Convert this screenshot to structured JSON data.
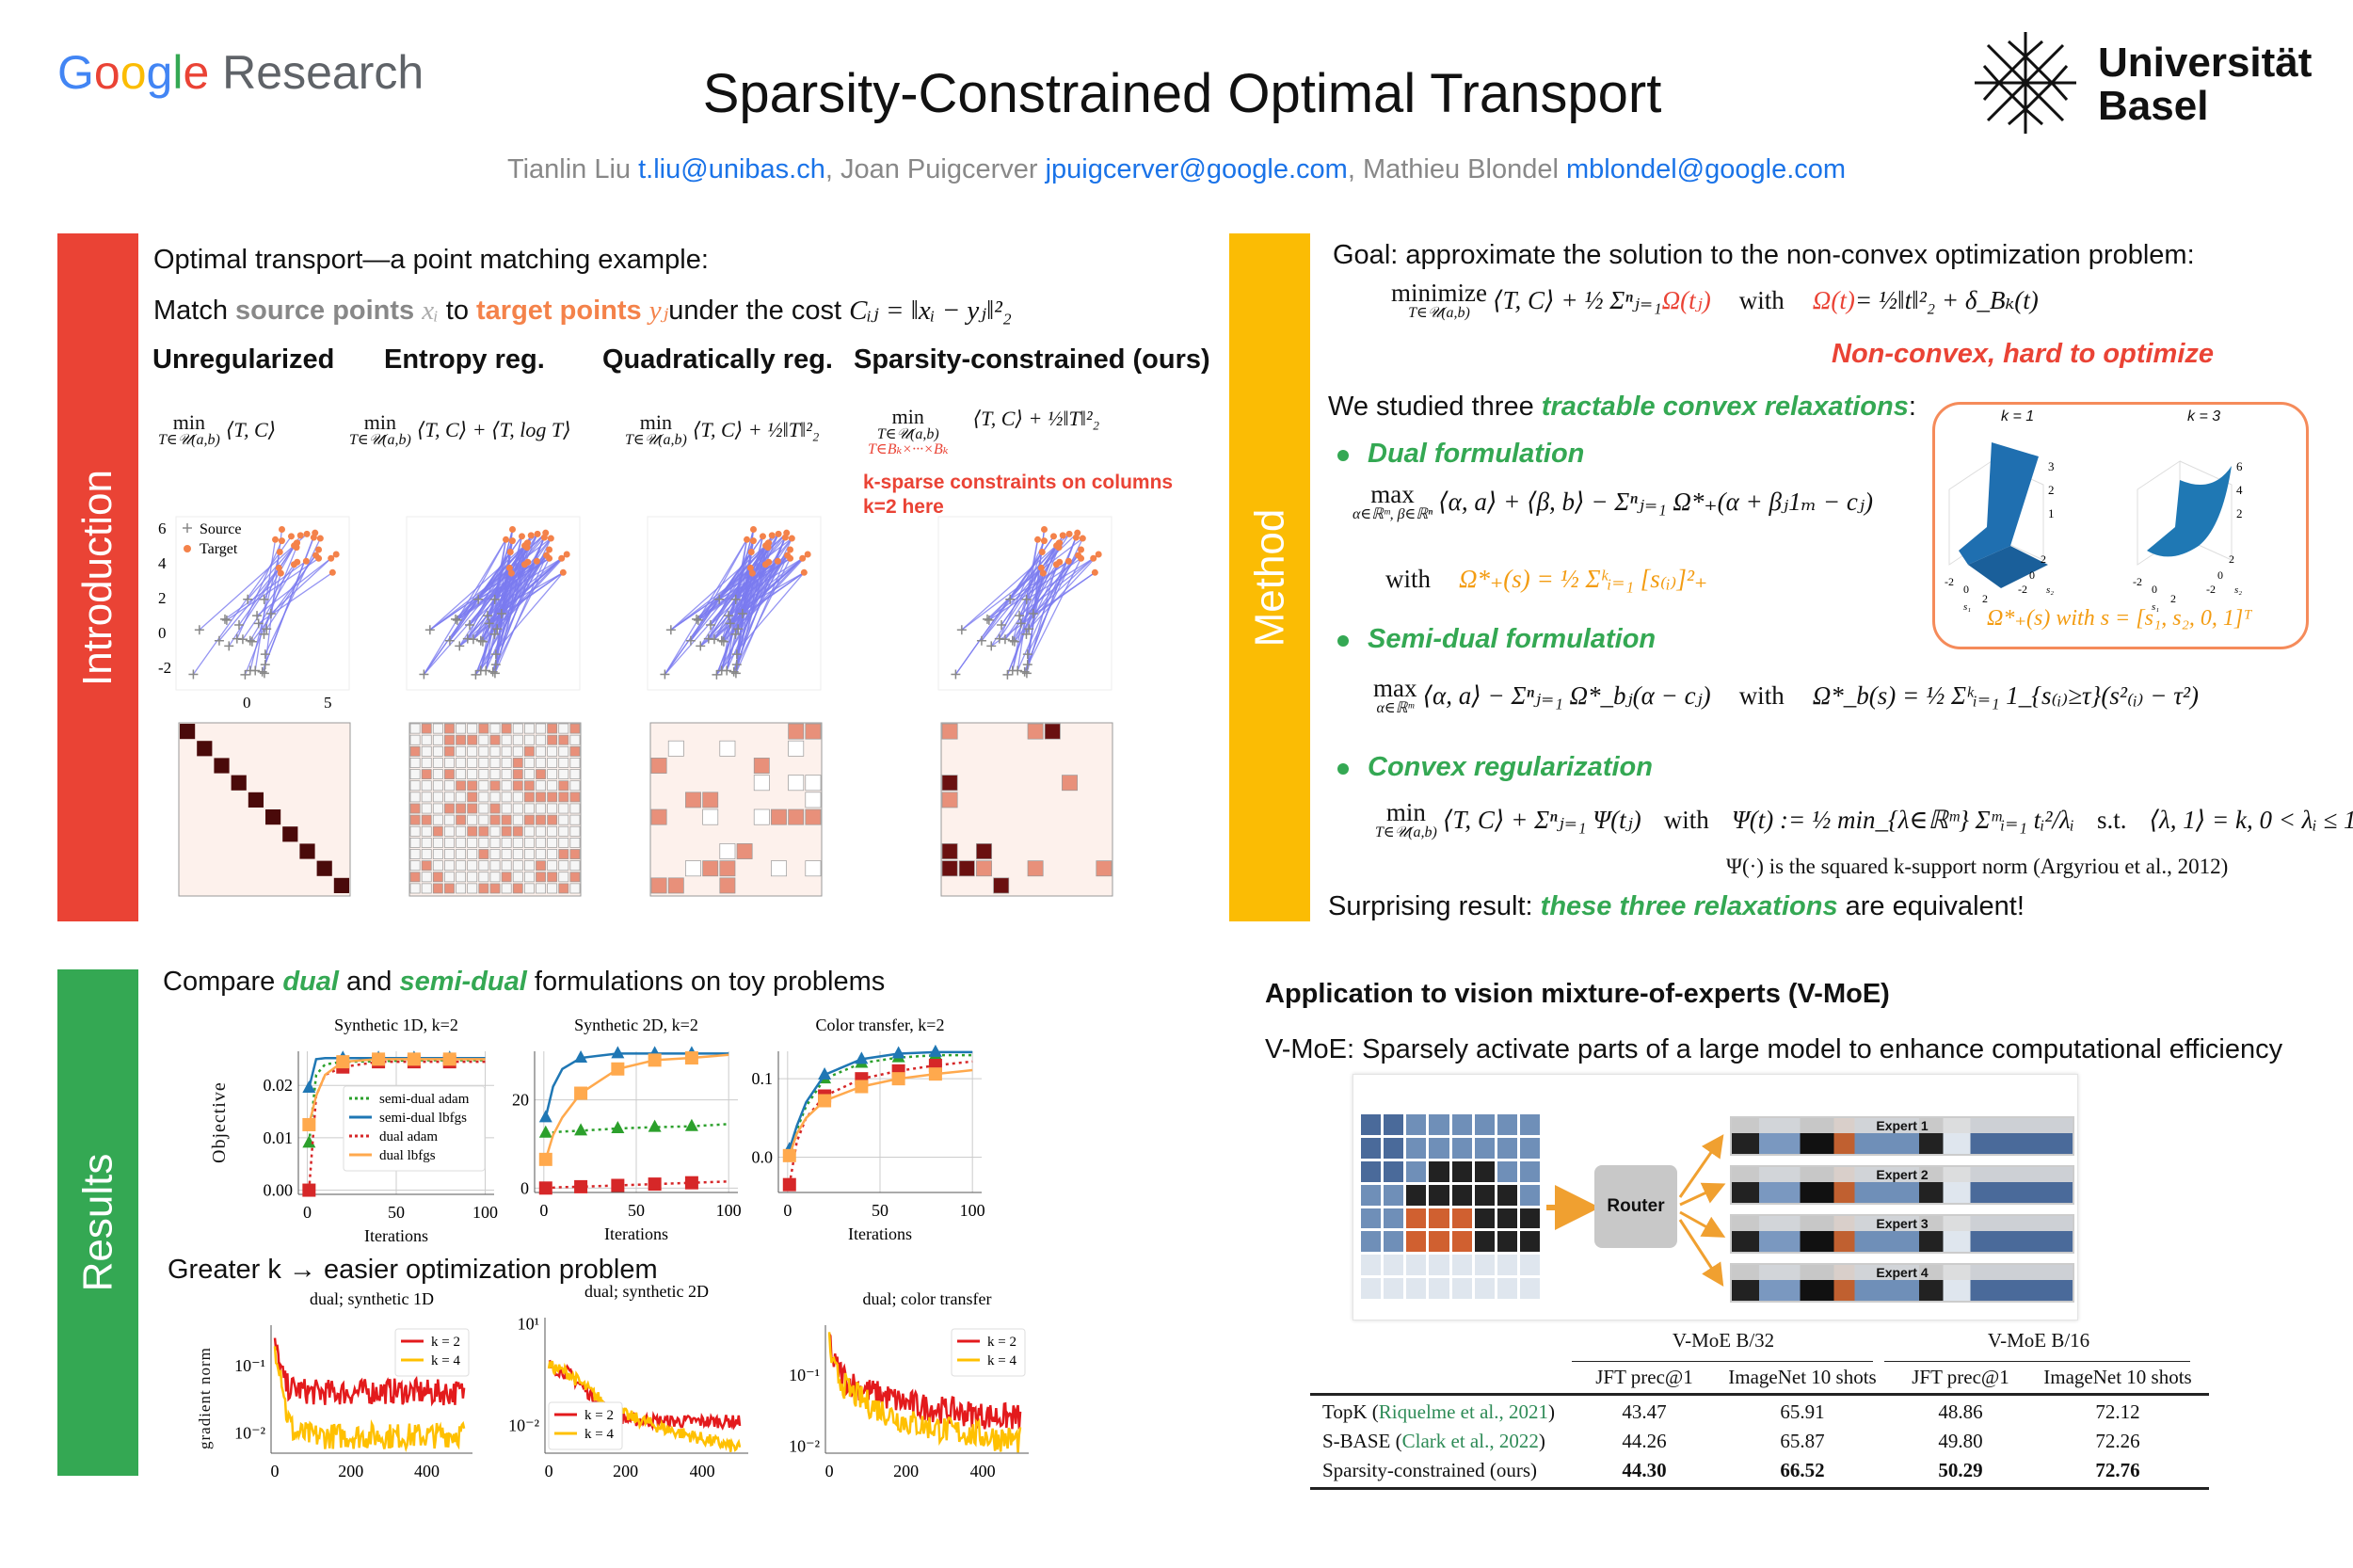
{
  "header": {
    "logo_google": [
      "G",
      "o",
      "o",
      "g",
      "l",
      "e"
    ],
    "logo_research": "Research",
    "title": "Sparsity-Constrained Optimal Transport",
    "authors": [
      {
        "name": "Tianlin Liu",
        "email": "t.liu@unibas.ch"
      },
      {
        "name": "Joan Puigcerver",
        "email": "jpuigcerver@google.com"
      },
      {
        "name": "Mathieu Blondel",
        "email": "mblondel@google.com"
      }
    ],
    "uni_line1": "Universität",
    "uni_line2": "Basel"
  },
  "colors": {
    "intro": "#ea4335",
    "method": "#fbbc04",
    "results": "#34a853",
    "source": "#888888",
    "target": "#f4824a",
    "link": "#1a73e8"
  },
  "intro": {
    "label": "Introduction",
    "line1": "Optimal transport—a point matching example:",
    "match": {
      "a": "Match ",
      "source": "source points ",
      "xi": "xᵢ",
      "b": " to ",
      "target": "target points ",
      "yj": "yⱼ",
      "c": "under the cost ",
      "cost": "Cᵢⱼ = ‖xᵢ − yⱼ‖²₂"
    },
    "columns": [
      {
        "heading": "Unregularized",
        "op": "min",
        "sub": "T∈𝒰(a,b)",
        "body": "⟨T, C⟩"
      },
      {
        "heading": "Entropy reg.",
        "op": "min",
        "sub": "T∈𝒰(a,b)",
        "body": "⟨T, C⟩ + ⟨T, log T⟩"
      },
      {
        "heading": "Quadratically reg.",
        "op": "min",
        "sub": "T∈𝒰(a,b)",
        "body": "⟨T, C⟩ + ½‖T‖²₂"
      },
      {
        "heading": "Sparsity-constrained (ours)",
        "op": "min",
        "sub": "T∈𝒰(a,b)",
        "sub2": "T∈Bₖ×···×Bₖ",
        "body": "⟨T, C⟩ + ½‖T‖²₂"
      }
    ],
    "note1": "k-sparse constraints on columns",
    "note2": "k=2 here",
    "legend": {
      "source": "Source",
      "target": "Target"
    },
    "yticks": [
      "6",
      "4",
      "2",
      "0",
      "-2"
    ],
    "xticks": [
      "0",
      "5"
    ]
  },
  "method": {
    "label": "Method",
    "goal": "Goal: approximate the solution to the non-convex optimization problem:",
    "f1": {
      "op": "minimize",
      "sub": "T∈𝒰(a,b)",
      "body": "⟨T, C⟩ + ½ Σⁿⱼ₌₁ ",
      "omega": "Ω(tⱼ)",
      "with": "with",
      "def_a": "Ω(t)",
      "def_b": " = ½‖t‖²₂ + δ_Bₖ(t)"
    },
    "nonconvex": "Non-convex, hard to optimize",
    "studied": {
      "a": "We studied three ",
      "b": "tractable convex relaxations",
      "c": ":"
    },
    "dual": {
      "title": "Dual formulation",
      "op": "max",
      "sub": "α∈ℝᵐ, β∈ℝⁿ",
      "body": "⟨α, a⟩ + ⟨β, b⟩ − Σⁿⱼ₌₁ Ω*₊(α + βⱼ1ₘ − cⱼ)",
      "with": "with",
      "def": "Ω*₊(s) = ½ Σᵏᵢ₌₁ [s₍ᵢ₎]²₊"
    },
    "semidual": {
      "title": "Semi-dual formulation",
      "op": "max",
      "sub": "α∈ℝᵐ",
      "body": "⟨α, a⟩ − Σⁿⱼ₌₁ Ω*_bⱼ(α − cⱼ)",
      "with": "with",
      "def": "Ω*_b(s) = ½ Σᵏᵢ₌₁ 1_{s₍ᵢ₎≥τ}(s²₍ᵢ₎ − τ²)"
    },
    "convex": {
      "title": "Convex regularization",
      "op": "min",
      "sub": "T∈𝒰(a,b)",
      "body": "⟨T, C⟩ + Σⁿⱼ₌₁ Ψ(tⱼ)",
      "with": "with",
      "def": "Ψ(t) := ½ min_{λ∈ℝᵐ} Σᵐᵢ₌₁ tᵢ²/λᵢ",
      "st": "s.t.",
      "constraint": "⟨λ, 1⟩ = k, 0 < λᵢ ≤ 1",
      "note": "Ψ(·) is the squared k-support norm (Argyriou et al., 2012)"
    },
    "surprising": {
      "a": "Surprising result: ",
      "b": "these three relaxations",
      "c": " are equivalent!"
    },
    "inset": {
      "k1": "k = 1",
      "k3": "k = 3",
      "zticks1": [
        "3",
        "2",
        "1"
      ],
      "zticks3": [
        "6",
        "4",
        "2"
      ],
      "axis_ticks": [
        "-2",
        "0",
        "2"
      ],
      "s1": "s₁",
      "s2": "s₂",
      "caption": "Ω*₊(s) with s = [s₁, s₂, 0, 1]ᵀ"
    }
  },
  "results": {
    "label": "Results",
    "compare": {
      "a": "Compare ",
      "b": "dual",
      "c": " and ",
      "d": "semi-dual",
      "e": " formulations on toy problems"
    },
    "greater": "Greater k → easier optimization problem",
    "ylabel_top": "Objective",
    "ylabel_bottom": "gradient norm",
    "xlabel": "Iterations"
  },
  "vmoe": {
    "heading": "Application to vision mixture-of-experts (V-MoE)",
    "subtitle": "V-MoE: Sparsely activate parts of a large model to enhance computational efficiency",
    "router": "Router",
    "experts": [
      "Expert 1",
      "Expert 2",
      "Expert 3",
      "Expert 4"
    ]
  },
  "table": {
    "groups": [
      "V-MoE B/32",
      "V-MoE B/16"
    ],
    "columns": [
      "JFT prec@1",
      "ImageNet 10 shots",
      "JFT prec@1",
      "ImageNet 10 shots"
    ],
    "rows": [
      {
        "method": "TopK",
        "cite": "Riquelme et al., 2021",
        "values": [
          "43.47",
          "65.91",
          "48.86",
          "72.12"
        ],
        "bold": false
      },
      {
        "method": "S-BASE",
        "cite": "Clark et al., 2022",
        "values": [
          "44.26",
          "65.87",
          "49.80",
          "72.26"
        ],
        "bold": false
      },
      {
        "method": "Sparsity-constrained (ours)",
        "cite": "",
        "values": [
          "44.30",
          "66.52",
          "50.29",
          "72.76"
        ],
        "bold": true
      }
    ]
  },
  "chart_data": [
    {
      "type": "line",
      "title": "Synthetic 1D, k=2",
      "xlabel": "Iterations",
      "ylabel": "Objective",
      "xlim": [
        -5,
        105
      ],
      "ylim": [
        -0.0008,
        0.0265
      ],
      "xticks": [
        0,
        50,
        100
      ],
      "xtick_labels": [
        "0",
        "50",
        "100"
      ],
      "yticks": [
        0,
        0.01,
        0.02
      ],
      "ytick_labels": [
        "0.00",
        "0.01",
        "0.02"
      ],
      "grid": true,
      "legend": "center-right",
      "x": [
        1,
        5,
        10,
        20,
        40,
        60,
        80,
        100
      ],
      "series": [
        {
          "name": "semi-dual adam",
          "color": "#2ca02c",
          "style": "dotted",
          "marker": "triangle",
          "values": [
            0.009,
            0.022,
            0.024,
            0.0245,
            0.0246,
            0.0248,
            0.0248,
            0.0248
          ]
        },
        {
          "name": "semi-dual lbfgs",
          "color": "#1f77b4",
          "style": "solid",
          "marker": "triangle",
          "values": [
            0.0195,
            0.025,
            0.0252,
            0.0252,
            0.0252,
            0.0252,
            0.0252,
            0.0252
          ]
        },
        {
          "name": "dual adam",
          "color": "#d62728",
          "style": "dotted",
          "marker": "square",
          "values": [
            0.0,
            0.018,
            0.022,
            0.0235,
            0.0245,
            0.0245,
            0.0245,
            0.0245
          ]
        },
        {
          "name": "dual lbfgs",
          "color": "#ffa94d",
          "style": "solid",
          "marker": "square",
          "values": [
            0.0125,
            0.018,
            0.022,
            0.0245,
            0.025,
            0.025,
            0.025,
            0.025
          ]
        }
      ]
    },
    {
      "type": "line",
      "title": "Synthetic 2D, k=2",
      "xlabel": "Iterations",
      "xlim": [
        -5,
        105
      ],
      "ylim": [
        -1,
        31
      ],
      "xticks": [
        0,
        50,
        100
      ],
      "xtick_labels": [
        "0",
        "50",
        "100"
      ],
      "yticks": [
        0,
        20
      ],
      "ytick_labels": [
        "0",
        "20"
      ],
      "grid": true,
      "x": [
        1,
        5,
        10,
        20,
        40,
        60,
        80,
        100
      ],
      "series": [
        {
          "color": "#2ca02c",
          "style": "dotted",
          "marker": "triangle",
          "values": [
            12.5,
            12.6,
            12.8,
            13,
            13.5,
            13.8,
            14,
            14.5
          ]
        },
        {
          "color": "#1f77b4",
          "style": "solid",
          "marker": "triangle",
          "values": [
            16,
            23,
            27,
            29.5,
            30.5,
            30.5,
            30.5,
            30.5
          ]
        },
        {
          "color": "#d62728",
          "style": "dotted",
          "marker": "square",
          "values": [
            0,
            0.1,
            0.2,
            0.3,
            0.6,
            0.9,
            1.2,
            1.5
          ]
        },
        {
          "color": "#ffa94d",
          "style": "solid",
          "marker": "square",
          "values": [
            6.5,
            12,
            16,
            21.5,
            27,
            29,
            29.5,
            30.2
          ]
        }
      ]
    },
    {
      "type": "line",
      "title": "Color transfer, k=2",
      "xlabel": "Iterations",
      "xlim": [
        -5,
        105
      ],
      "ylim": [
        -0.045,
        0.135
      ],
      "xticks": [
        0,
        50,
        100
      ],
      "xtick_labels": [
        "0",
        "50",
        "100"
      ],
      "yticks": [
        0,
        0.1
      ],
      "ytick_labels": [
        "0.0",
        "0.1"
      ],
      "grid": true,
      "x": [
        1,
        5,
        10,
        20,
        40,
        60,
        80,
        100
      ],
      "series": [
        {
          "color": "#2ca02c",
          "style": "dotted",
          "marker": "triangle",
          "values": [
            0.005,
            0.035,
            0.065,
            0.1,
            0.12,
            0.127,
            0.13,
            0.13
          ]
        },
        {
          "color": "#1f77b4",
          "style": "solid",
          "marker": "triangle",
          "values": [
            0.01,
            0.04,
            0.07,
            0.105,
            0.125,
            0.132,
            0.134,
            0.134
          ]
        },
        {
          "color": "#d62728",
          "style": "dotted",
          "marker": "square",
          "values": [
            -0.035,
            0.02,
            0.05,
            0.078,
            0.1,
            0.11,
            0.117,
            0.122
          ]
        },
        {
          "color": "#ffa94d",
          "style": "solid",
          "marker": "square",
          "values": [
            0.002,
            0.03,
            0.05,
            0.072,
            0.09,
            0.1,
            0.106,
            0.111
          ]
        }
      ]
    },
    {
      "type": "line",
      "title": "dual; synthetic 1D",
      "ylabel": "gradient norm",
      "yscale": "log",
      "xlim": [
        -10,
        520
      ],
      "ylim": [
        0.005,
        0.4
      ],
      "xticks": [
        0,
        200,
        400
      ],
      "xtick_labels": [
        "0",
        "200",
        "400"
      ],
      "yticks": [
        0.1,
        0.01
      ],
      "ytick_labels": [
        "10⁻¹",
        "10⁻²"
      ],
      "grid": false,
      "legend": "top-right",
      "x": [
        0,
        10,
        20,
        30,
        50,
        100,
        200,
        300,
        400,
        500
      ],
      "series": [
        {
          "name": "k = 2",
          "color": "#e31a1c",
          "values": [
            0.2,
            0.12,
            0.07,
            0.05,
            0.045,
            0.04,
            0.04,
            0.042,
            0.04,
            0.04
          ]
        },
        {
          "name": "k = 4",
          "color": "#ffc000",
          "values": [
            0.2,
            0.12,
            0.06,
            0.02,
            0.01,
            0.009,
            0.009,
            0.009,
            0.009,
            0.01
          ]
        }
      ]
    },
    {
      "type": "line",
      "title": "dual; synthetic 2D",
      "yscale": "log",
      "xlim": [
        -10,
        520
      ],
      "ylim": [
        0.0015,
        15
      ],
      "xticks": [
        0,
        200,
        400
      ],
      "xtick_labels": [
        "0",
        "200",
        "400"
      ],
      "yticks": [
        10,
        0.01
      ],
      "ytick_labels": [
        "10¹",
        "10⁻²"
      ],
      "grid": false,
      "legend": "bottom-left",
      "x": [
        0,
        10,
        50,
        100,
        150,
        200,
        300,
        400,
        500
      ],
      "series": [
        {
          "name": "k = 2",
          "color": "#e31a1c",
          "values": [
            0.6,
            0.5,
            0.35,
            0.1,
            0.03,
            0.015,
            0.013,
            0.013,
            0.013
          ]
        },
        {
          "name": "k = 4",
          "color": "#ffc000",
          "values": [
            0.6,
            0.5,
            0.35,
            0.12,
            0.04,
            0.02,
            0.008,
            0.004,
            0.002
          ]
        }
      ]
    },
    {
      "type": "line",
      "title": "dual; color transfer",
      "yscale": "log",
      "xlim": [
        -10,
        520
      ],
      "ylim": [
        0.008,
        0.5
      ],
      "xticks": [
        0,
        200,
        400
      ],
      "xtick_labels": [
        "0",
        "200",
        "400"
      ],
      "yticks": [
        0.1,
        0.01
      ],
      "ytick_labels": [
        "10⁻¹",
        "10⁻²"
      ],
      "grid": false,
      "legend": "top-right",
      "x": [
        0,
        10,
        50,
        100,
        200,
        300,
        400,
        500
      ],
      "series": [
        {
          "name": "k = 2",
          "color": "#e31a1c",
          "values": [
            0.35,
            0.15,
            0.08,
            0.06,
            0.04,
            0.032,
            0.027,
            0.025
          ]
        },
        {
          "name": "k = 4",
          "color": "#ffc000",
          "values": [
            0.3,
            0.12,
            0.06,
            0.04,
            0.022,
            0.017,
            0.014,
            0.012
          ]
        }
      ]
    }
  ]
}
